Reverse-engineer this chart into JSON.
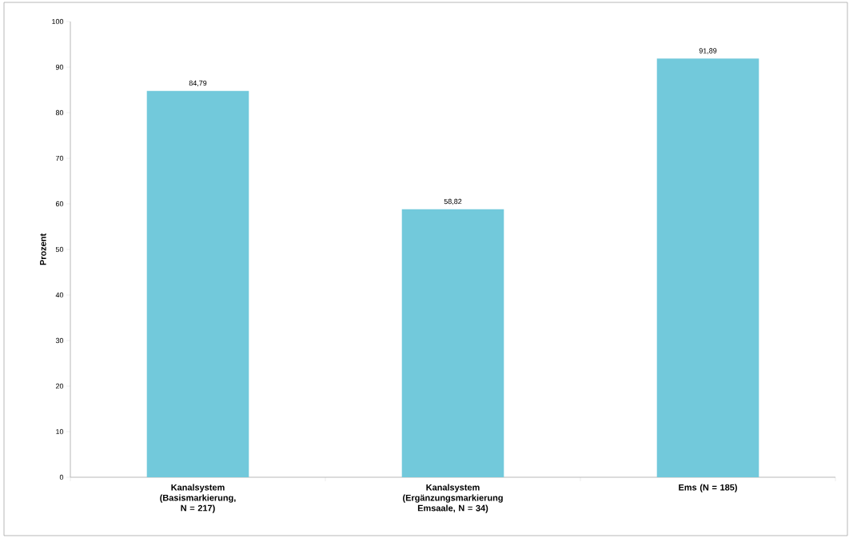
{
  "chart_data": {
    "type": "bar",
    "ylabel": "Prozent",
    "categories": [
      "Kanalsystem (Basismarkierung, N = 217)",
      "Kanalsystem (Ergänzungsmarkierung Emsaale, N = 34)",
      "Ems (N = 185)"
    ],
    "values": [
      84.79,
      58.82,
      91.89
    ],
    "value_labels": [
      "84,79",
      "58,82",
      "91,89"
    ],
    "color": "#72c9db",
    "ylim": [
      0,
      100
    ],
    "yticks": [
      0,
      10,
      20,
      30,
      40,
      50,
      60,
      70,
      80,
      90,
      100
    ],
    "grid": false
  }
}
